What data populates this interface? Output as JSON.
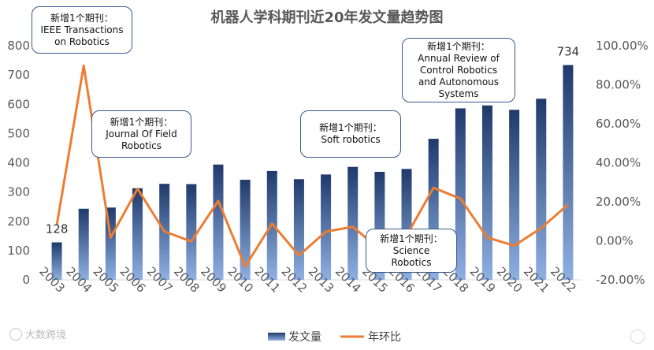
{
  "chart_data": {
    "type": "bar+line",
    "title": "机器人学科期刊近20年发文量趋势图",
    "categories": [
      "2003",
      "2004",
      "2005",
      "2006",
      "2007",
      "2008",
      "2009",
      "2010",
      "2011",
      "2012",
      "2013",
      "2014",
      "2015",
      "2016",
      "2017",
      "2018",
      "2019",
      "2020",
      "2021",
      "2022"
    ],
    "series": [
      {
        "name": "发文量",
        "type": "bar",
        "axis": "left",
        "values": [
          128,
          243,
          247,
          313,
          328,
          327,
          394,
          342,
          372,
          344,
          360,
          386,
          369,
          379,
          482,
          586,
          596,
          581,
          619,
          734
        ]
      },
      {
        "name": "年环比",
        "type": "line",
        "axis": "right",
        "values": [
          8.1,
          89.8,
          1.6,
          26.7,
          4.8,
          -0.3,
          20.5,
          -13.2,
          8.8,
          -7.5,
          4.7,
          7.2,
          -4.4,
          2.7,
          27.2,
          21.6,
          1.7,
          -2.5,
          6.5,
          18.6
        ]
      }
    ],
    "data_labels": [
      {
        "category": "2003",
        "text": "128"
      },
      {
        "category": "2022",
        "text": "734"
      }
    ],
    "y_left": {
      "min": 0,
      "max": 800,
      "ticks": [
        "0",
        "100",
        "200",
        "300",
        "400",
        "500",
        "600",
        "700",
        "800"
      ]
    },
    "y_right": {
      "min": -20,
      "max": 100,
      "ticks": [
        "-20.00%",
        "0.00%",
        "20.00%",
        "40.00%",
        "60.00%",
        "80.00%",
        "100.00%"
      ]
    },
    "legend_position": "bottom",
    "grid": false,
    "colors": {
      "bar_top": "#1f3a6b",
      "bar_bottom": "#8fb0e3",
      "line": "#ed7d31",
      "axis_text": "#595959"
    },
    "annotations": [
      {
        "lines": [
          "新增1个期刊：",
          "IEEE Transactions",
          "on Robotics"
        ]
      },
      {
        "lines": [
          "新增1个期刊：",
          "Journal Of Field",
          "Robotics"
        ]
      },
      {
        "lines": [
          "新增1个期刊：",
          "Soft robotics"
        ]
      },
      {
        "lines": [
          "新增1个期刊：",
          "Annual Review of",
          "Control Robotics",
          "and Autonomous",
          "Systems"
        ]
      },
      {
        "lines": [
          "新增1个期刊：",
          "Science",
          "Robotics"
        ]
      }
    ]
  },
  "watermark": "大数跨境"
}
